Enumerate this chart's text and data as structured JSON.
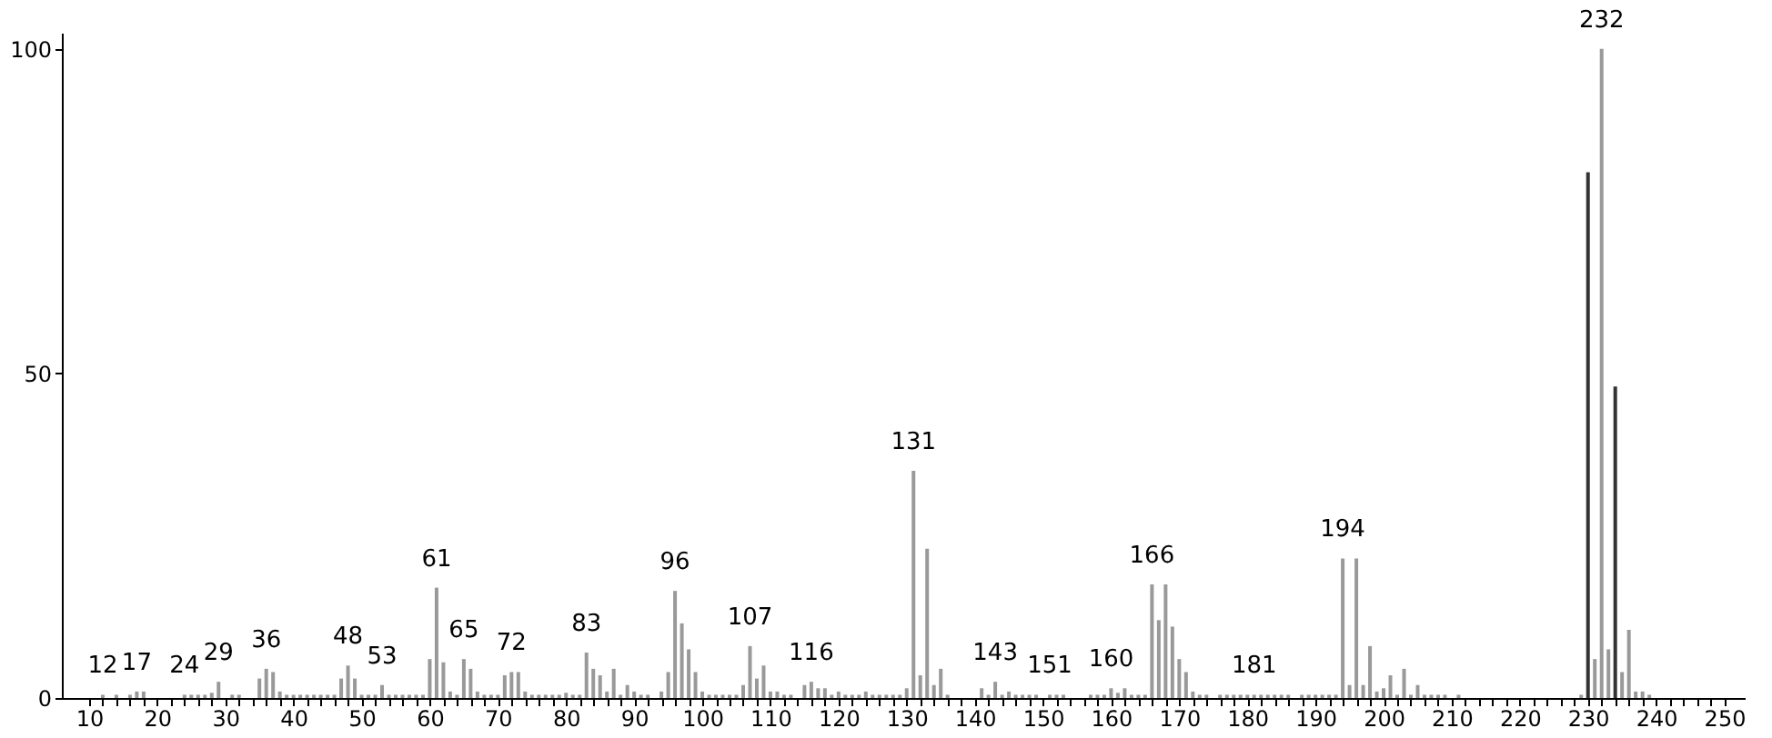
{
  "chart_data": {
    "type": "bar",
    "xlim": [
      6,
      253
    ],
    "ylim": [
      0,
      102.5
    ],
    "yticks": [
      0,
      50,
      100
    ],
    "grid": false,
    "xticks": [
      10,
      {
        "value": 12,
        "label": null
      },
      {
        "value": 14,
        "label": null
      },
      {
        "value": 16,
        "label": null
      },
      {
        "value": 18,
        "label": null
      },
      20,
      {
        "value": 22,
        "label": null
      },
      {
        "value": 24,
        "label": null
      },
      {
        "value": 26,
        "label": null
      },
      {
        "value": 28,
        "label": null
      },
      30,
      {
        "value": 32,
        "label": null
      },
      {
        "value": 34,
        "label": null
      },
      {
        "value": 36,
        "label": null
      },
      {
        "value": 38,
        "label": null
      },
      40,
      {
        "value": 42,
        "label": null
      },
      {
        "value": 44,
        "label": null
      },
      {
        "value": 46,
        "label": null
      },
      {
        "value": 48,
        "label": null
      },
      50,
      {
        "value": 52,
        "label": null
      },
      {
        "value": 54,
        "label": null
      },
      {
        "value": 56,
        "label": null
      },
      {
        "value": 58,
        "label": null
      },
      60,
      {
        "value": 62,
        "label": null
      },
      {
        "value": 64,
        "label": null
      },
      {
        "value": 66,
        "label": null
      },
      {
        "value": 68,
        "label": null
      },
      70,
      {
        "value": 72,
        "label": null
      },
      {
        "value": 74,
        "label": null
      },
      {
        "value": 76,
        "label": null
      },
      {
        "value": 78,
        "label": null
      },
      80,
      {
        "value": 82,
        "label": null
      },
      {
        "value": 84,
        "label": null
      },
      {
        "value": 86,
        "label": null
      },
      {
        "value": 88,
        "label": null
      },
      90,
      {
        "value": 92,
        "label": null
      },
      {
        "value": 94,
        "label": null
      },
      {
        "value": 96,
        "label": null
      },
      {
        "value": 98,
        "label": null
      },
      100,
      {
        "value": 102,
        "label": null
      },
      {
        "value": 104,
        "label": null
      },
      {
        "value": 106,
        "label": null
      },
      {
        "value": 108,
        "label": null
      },
      110,
      {
        "value": 112,
        "label": null
      },
      {
        "value": 114,
        "label": null
      },
      {
        "value": 116,
        "label": null
      },
      {
        "value": 118,
        "label": null
      },
      120,
      {
        "value": 122,
        "label": null
      },
      {
        "value": 124,
        "label": null
      },
      {
        "value": 126,
        "label": null
      },
      {
        "value": 128,
        "label": null
      },
      130,
      {
        "value": 132,
        "label": null
      },
      {
        "value": 134,
        "label": null
      },
      {
        "value": 136,
        "label": null
      },
      {
        "value": 138,
        "label": null
      },
      140,
      {
        "value": 142,
        "label": null
      },
      {
        "value": 144,
        "label": null
      },
      {
        "value": 146,
        "label": null
      },
      {
        "value": 148,
        "label": null
      },
      150,
      {
        "value": 152,
        "label": null
      },
      {
        "value": 154,
        "label": null
      },
      {
        "value": 156,
        "label": null
      },
      {
        "value": 158,
        "label": null
      },
      160,
      {
        "value": 162,
        "label": null
      },
      {
        "value": 164,
        "label": null
      },
      {
        "value": 166,
        "label": null
      },
      {
        "value": 168,
        "label": null
      },
      170,
      {
        "value": 172,
        "label": null
      },
      {
        "value": 174,
        "label": null
      },
      {
        "value": 176,
        "label": null
      },
      {
        "value": 178,
        "label": null
      },
      180,
      {
        "value": 182,
        "label": null
      },
      {
        "value": 184,
        "label": null
      },
      {
        "value": 186,
        "label": null
      },
      {
        "value": 188,
        "label": null
      },
      190,
      {
        "value": 192,
        "label": null
      },
      {
        "value": 194,
        "label": null
      },
      {
        "value": 196,
        "label": null
      },
      {
        "value": 198,
        "label": null
      },
      200,
      {
        "value": 202,
        "label": null
      },
      {
        "value": 204,
        "label": null
      },
      {
        "value": 206,
        "label": null
      },
      {
        "value": 208,
        "label": null
      },
      210,
      {
        "value": 212,
        "label": null
      },
      {
        "value": 214,
        "label": null
      },
      {
        "value": 216,
        "label": null
      },
      {
        "value": 218,
        "label": null
      },
      220,
      {
        "value": 222,
        "label": null
      },
      {
        "value": 224,
        "label": null
      },
      {
        "value": 226,
        "label": null
      },
      {
        "value": 228,
        "label": null
      },
      230,
      {
        "value": 232,
        "label": null
      },
      {
        "value": 234,
        "label": null
      },
      {
        "value": 236,
        "label": null
      },
      {
        "value": 238,
        "label": null
      },
      240,
      {
        "value": 242,
        "label": null
      },
      {
        "value": 244,
        "label": null
      },
      {
        "value": 246,
        "label": null
      },
      {
        "value": 248,
        "label": null
      },
      250
    ],
    "series": [
      {
        "color": "#999999",
        "x": [
          12,
          14,
          16,
          17,
          18,
          24,
          25,
          26,
          27,
          28,
          29,
          31,
          32,
          35,
          36,
          37,
          38,
          39,
          40,
          41,
          42,
          43,
          44,
          45,
          46,
          47,
          48,
          49,
          50,
          51,
          52,
          53,
          54,
          55,
          56,
          57,
          58,
          59,
          60,
          61,
          62,
          63,
          64,
          65,
          66,
          67,
          68,
          69,
          70,
          71,
          72,
          73,
          74,
          75,
          76,
          77,
          78,
          79,
          80,
          81,
          82,
          83,
          84,
          85,
          86,
          87,
          88,
          89,
          90,
          91,
          92,
          94,
          95,
          96,
          97,
          98,
          99,
          100,
          101,
          102,
          103,
          104,
          105,
          106,
          107,
          108,
          109,
          110,
          111,
          112,
          113,
          115,
          116,
          117,
          118,
          119,
          120,
          121,
          122,
          123,
          124,
          125,
          126,
          127,
          128,
          129,
          130,
          131,
          132,
          133,
          134,
          135,
          136,
          141,
          142,
          143,
          144,
          145,
          146,
          147,
          148,
          149,
          151,
          152,
          153,
          157,
          158,
          159,
          160,
          161,
          162,
          163,
          164,
          165,
          166,
          167,
          168,
          169,
          170,
          171,
          172,
          173,
          174,
          176,
          177,
          178,
          179,
          180,
          181,
          182,
          183,
          184,
          185,
          186,
          188,
          189,
          190,
          191,
          192,
          193,
          194,
          195,
          196,
          197,
          198,
          199,
          200,
          201,
          202,
          203,
          204,
          205,
          206,
          207,
          208,
          209,
          211,
          229,
          231,
          232,
          233,
          235,
          236,
          237,
          238,
          239
        ],
        "values": [
          0.5,
          0.5,
          0.5,
          1,
          1,
          0.5,
          0.5,
          0.5,
          0.5,
          0.8,
          2.5,
          0.5,
          0.5,
          3,
          4.5,
          4,
          1,
          0.5,
          0.5,
          0.5,
          0.5,
          0.5,
          0.5,
          0.5,
          0.5,
          3,
          5,
          3,
          0.5,
          0.5,
          0.5,
          2,
          0.5,
          0.5,
          0.5,
          0.5,
          0.5,
          0.5,
          6,
          17,
          5.5,
          1,
          0.5,
          6,
          4.5,
          1,
          0.5,
          0.5,
          0.5,
          3.5,
          4,
          4,
          1,
          0.5,
          0.5,
          0.5,
          0.5,
          0.5,
          0.8,
          0.5,
          0.5,
          7,
          4.5,
          3.5,
          1,
          4.5,
          0.5,
          2,
          1,
          0.5,
          0.5,
          1,
          4,
          16.5,
          11.5,
          7.5,
          4,
          1,
          0.5,
          0.5,
          0.5,
          0.5,
          0.5,
          2,
          8,
          3,
          5,
          1,
          1,
          0.5,
          0.5,
          2,
          2.5,
          1.5,
          1.5,
          0.5,
          1,
          0.5,
          0.5,
          0.5,
          1,
          0.5,
          0.5,
          0.5,
          0.5,
          0.5,
          1.5,
          35,
          3.5,
          23,
          2,
          4.5,
          0.5,
          1.5,
          0.5,
          2.5,
          0.5,
          1,
          0.5,
          0.5,
          0.5,
          0.5,
          0.5,
          0.5,
          0.5,
          0.5,
          0.5,
          0.5,
          1.5,
          0.8,
          1.5,
          0.5,
          0.5,
          0.5,
          17.5,
          12,
          17.5,
          11,
          6,
          4,
          1,
          0.5,
          0.5,
          0.5,
          0.5,
          0.5,
          0.5,
          0.5,
          0.5,
          0.5,
          0.5,
          0.5,
          0.5,
          0.5,
          0.5,
          0.5,
          0.5,
          0.5,
          0.5,
          0.5,
          21.5,
          2,
          21.5,
          2,
          8,
          1,
          1.5,
          3.5,
          0.5,
          4.5,
          0.5,
          2,
          0.5,
          0.5,
          0.5,
          0.5,
          0.5,
          0.5,
          6,
          100,
          7.5,
          4,
          10.5,
          1,
          1,
          0.5
        ]
      },
      {
        "color": "#333333",
        "x": [
          230,
          234
        ],
        "values": [
          81,
          48
        ]
      }
    ],
    "annotations": [
      {
        "text": "12",
        "x": 12,
        "y": 0.5
      },
      {
        "text": "17",
        "x": 17,
        "y": 1
      },
      {
        "text": "24",
        "x": 24,
        "y": 0.5
      },
      {
        "text": "29",
        "x": 29,
        "y": 2.5
      },
      {
        "text": "36",
        "x": 36,
        "y": 4.5
      },
      {
        "text": "48",
        "x": 48,
        "y": 5
      },
      {
        "text": "53",
        "x": 53,
        "y": 2
      },
      {
        "text": "61",
        "x": 61,
        "y": 17
      },
      {
        "text": "65",
        "x": 65,
        "y": 6
      },
      {
        "text": "72",
        "x": 72,
        "y": 4
      },
      {
        "text": "83",
        "x": 83,
        "y": 7
      },
      {
        "text": "96",
        "x": 96,
        "y": 16.5
      },
      {
        "text": "107",
        "x": 107,
        "y": 8
      },
      {
        "text": "116",
        "x": 116,
        "y": 2.5
      },
      {
        "text": "131",
        "x": 131,
        "y": 35
      },
      {
        "text": "143",
        "x": 143,
        "y": 2.5
      },
      {
        "text": "151",
        "x": 151,
        "y": 0.5
      },
      {
        "text": "160",
        "x": 160,
        "y": 1.5
      },
      {
        "text": "166",
        "x": 166,
        "y": 17.5
      },
      {
        "text": "181",
        "x": 181,
        "y": 0.5
      },
      {
        "text": "194",
        "x": 194,
        "y": 21.5
      },
      {
        "text": "232",
        "x": 232,
        "y": 100
      }
    ]
  }
}
